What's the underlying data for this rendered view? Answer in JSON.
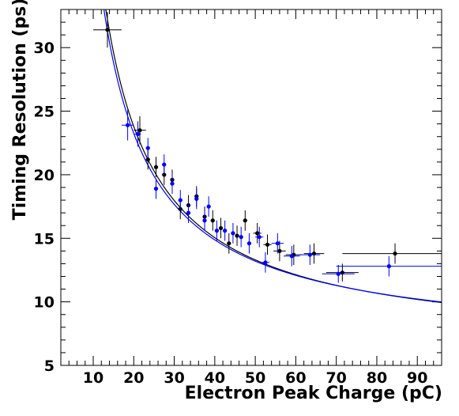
{
  "chart_data": {
    "type": "scatter",
    "xlabel": "Electron Peak Charge (pC)",
    "ylabel": "Timing Resolution (ps)",
    "xlim": [
      2,
      96
    ],
    "ylim": [
      5,
      33
    ],
    "x_ticks": [
      10,
      20,
      30,
      40,
      50,
      60,
      70,
      80,
      90
    ],
    "y_ticks": [
      5,
      10,
      15,
      20,
      25,
      30
    ],
    "x_tick_labels": [
      "10",
      "20",
      "30",
      "40",
      "50",
      "60",
      "70",
      "80",
      "90"
    ],
    "y_tick_labels": [
      "5",
      "10",
      "15",
      "20",
      "25",
      "30"
    ],
    "grid": false,
    "legend": "none",
    "series": [
      {
        "color": "#000000",
        "points": [
          {
            "x": 13.5,
            "y": 31.4,
            "xerr": 3.5,
            "yerr": 1.4
          },
          {
            "x": 21.5,
            "y": 23.5,
            "xerr": 1.5,
            "yerr": 1.1
          },
          {
            "x": 23.5,
            "y": 21.2,
            "xerr": 0.5,
            "yerr": 0.8
          },
          {
            "x": 25.5,
            "y": 20.6,
            "xerr": 0.5,
            "yerr": 0.8
          },
          {
            "x": 27.5,
            "y": 20.0,
            "xerr": 0.5,
            "yerr": 0.8
          },
          {
            "x": 29.5,
            "y": 19.6,
            "xerr": 0.5,
            "yerr": 0.8
          },
          {
            "x": 31.5,
            "y": 17.3,
            "xerr": 0.5,
            "yerr": 0.8
          },
          {
            "x": 33.5,
            "y": 17.6,
            "xerr": 0.5,
            "yerr": 0.8
          },
          {
            "x": 35.5,
            "y": 18.3,
            "xerr": 0.5,
            "yerr": 0.8
          },
          {
            "x": 37.5,
            "y": 16.7,
            "xerr": 0.5,
            "yerr": 0.8
          },
          {
            "x": 39.5,
            "y": 16.4,
            "xerr": 0.5,
            "yerr": 0.8
          },
          {
            "x": 41.5,
            "y": 15.8,
            "xerr": 0.5,
            "yerr": 0.8
          },
          {
            "x": 43.5,
            "y": 14.6,
            "xerr": 0.5,
            "yerr": 0.8
          },
          {
            "x": 45.5,
            "y": 15.2,
            "xerr": 0.5,
            "yerr": 0.8
          },
          {
            "x": 47.5,
            "y": 16.4,
            "xerr": 0.5,
            "yerr": 0.8
          },
          {
            "x": 50.5,
            "y": 15.4,
            "xerr": 1.0,
            "yerr": 0.8
          },
          {
            "x": 53.0,
            "y": 14.5,
            "xerr": 1.0,
            "yerr": 0.8
          },
          {
            "x": 56.0,
            "y": 14.0,
            "xerr": 1.5,
            "yerr": 0.8
          },
          {
            "x": 59.5,
            "y": 13.7,
            "xerr": 2.0,
            "yerr": 0.8
          },
          {
            "x": 64.5,
            "y": 13.8,
            "xerr": 2.5,
            "yerr": 0.8
          },
          {
            "x": 71.5,
            "y": 12.3,
            "xerr": 4.0,
            "yerr": 0.7
          },
          {
            "x": 84.5,
            "y": 13.8,
            "xerr": 13.0,
            "yerr": 0.8
          }
        ]
      },
      {
        "color": "#0000ff",
        "points": [
          {
            "x": 18.5,
            "y": 23.9,
            "xerr": 1.5,
            "yerr": 1.2
          },
          {
            "x": 21.0,
            "y": 23.2,
            "xerr": 0.8,
            "yerr": 1.0
          },
          {
            "x": 23.5,
            "y": 22.1,
            "xerr": 0.5,
            "yerr": 0.8
          },
          {
            "x": 25.5,
            "y": 18.9,
            "xerr": 0.5,
            "yerr": 0.8
          },
          {
            "x": 27.5,
            "y": 20.8,
            "xerr": 0.5,
            "yerr": 0.8
          },
          {
            "x": 29.5,
            "y": 19.3,
            "xerr": 0.5,
            "yerr": 0.8
          },
          {
            "x": 31.5,
            "y": 18.0,
            "xerr": 0.5,
            "yerr": 0.8
          },
          {
            "x": 33.5,
            "y": 17.0,
            "xerr": 0.5,
            "yerr": 0.8
          },
          {
            "x": 35.5,
            "y": 18.1,
            "xerr": 0.5,
            "yerr": 0.8
          },
          {
            "x": 37.5,
            "y": 16.4,
            "xerr": 0.5,
            "yerr": 0.8
          },
          {
            "x": 38.5,
            "y": 17.5,
            "xerr": 0.5,
            "yerr": 0.8
          },
          {
            "x": 40.5,
            "y": 15.6,
            "xerr": 0.5,
            "yerr": 0.8
          },
          {
            "x": 42.5,
            "y": 15.6,
            "xerr": 0.5,
            "yerr": 0.8
          },
          {
            "x": 44.5,
            "y": 15.4,
            "xerr": 0.5,
            "yerr": 0.8
          },
          {
            "x": 46.5,
            "y": 15.1,
            "xerr": 0.5,
            "yerr": 0.8
          },
          {
            "x": 48.5,
            "y": 14.6,
            "xerr": 0.5,
            "yerr": 0.8
          },
          {
            "x": 51.0,
            "y": 15.1,
            "xerr": 1.0,
            "yerr": 0.8
          },
          {
            "x": 52.5,
            "y": 13.1,
            "xerr": 1.0,
            "yerr": 0.8
          },
          {
            "x": 55.5,
            "y": 14.6,
            "xerr": 1.5,
            "yerr": 0.8
          },
          {
            "x": 59.0,
            "y": 13.6,
            "xerr": 2.0,
            "yerr": 0.8
          },
          {
            "x": 63.5,
            "y": 13.7,
            "xerr": 2.5,
            "yerr": 0.8
          },
          {
            "x": 70.5,
            "y": 12.2,
            "xerr": 4.0,
            "yerr": 0.7
          },
          {
            "x": 83.0,
            "y": 12.8,
            "xerr": 13.0,
            "yerr": 0.8
          }
        ]
      }
    ],
    "fits": [
      {
        "color": "#000000",
        "a": 6.3,
        "b": 350
      },
      {
        "color": "#0000ff",
        "a": 6.5,
        "b": 335
      }
    ]
  }
}
